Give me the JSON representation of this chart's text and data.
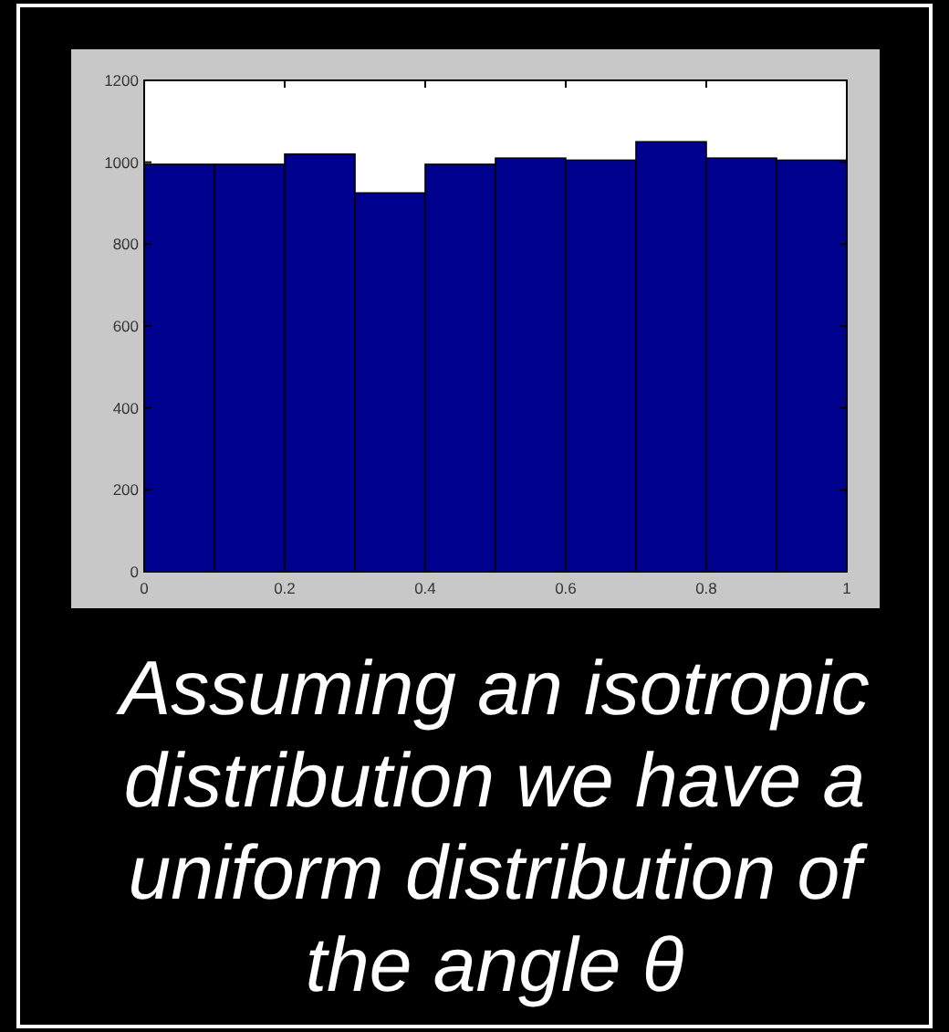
{
  "chart_data": {
    "type": "histogram",
    "bins": [
      0,
      0.1,
      0.2,
      0.3,
      0.4,
      0.5,
      0.6,
      0.7,
      0.8,
      0.9,
      1
    ],
    "values": [
      995,
      995,
      1020,
      925,
      995,
      1010,
      1005,
      1050,
      1010,
      1005
    ],
    "color": "#00008f",
    "xlim": [
      0,
      1
    ],
    "ylim": [
      0,
      1200
    ],
    "xticks": [
      0,
      0.2,
      0.4,
      0.6,
      0.8,
      1
    ],
    "yticks": [
      0,
      200,
      400,
      600,
      800,
      1000,
      1200
    ],
    "annotations": [
      "Assuming an isotropic distribution we have a uniform distribution of the angle θ"
    ]
  }
}
